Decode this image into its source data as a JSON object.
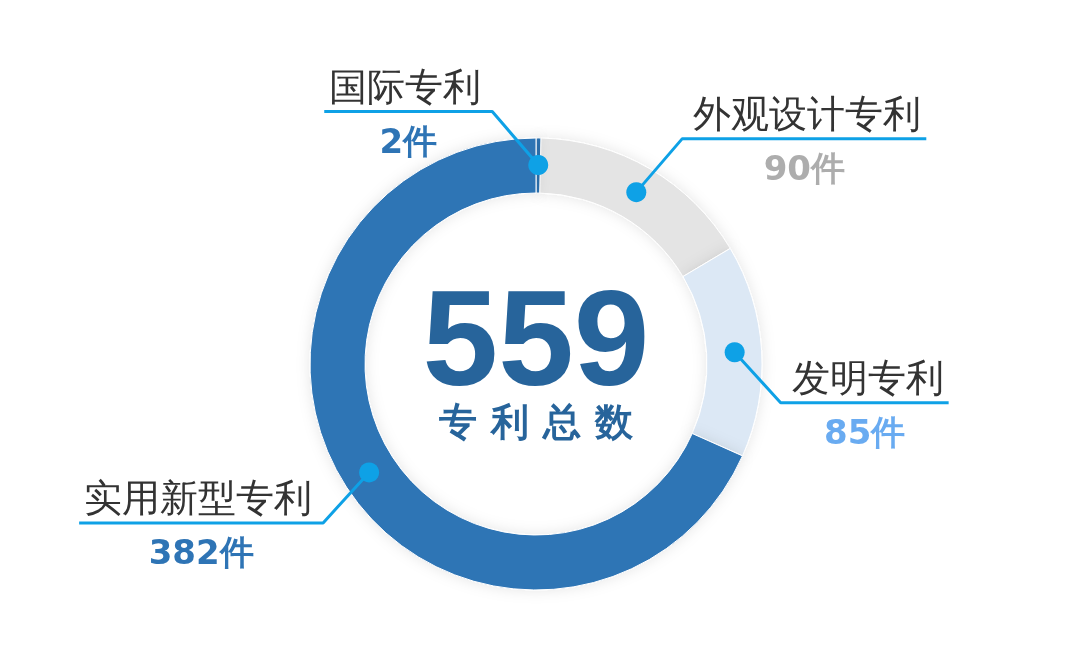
{
  "chart_data": {
    "type": "donut",
    "categories": [
      "国际专利",
      "外观设计专利",
      "发明专利",
      "实用新型专利"
    ],
    "values": [
      2,
      90,
      85,
      382
    ],
    "colors": [
      "#2e74b5",
      "#e4e4e4",
      "#dce8f5",
      "#2e74b5"
    ],
    "value_labels": [
      "2件",
      "90件",
      "85件",
      "382件"
    ],
    "annotations": [
      "559",
      "专利总数"
    ]
  }
}
